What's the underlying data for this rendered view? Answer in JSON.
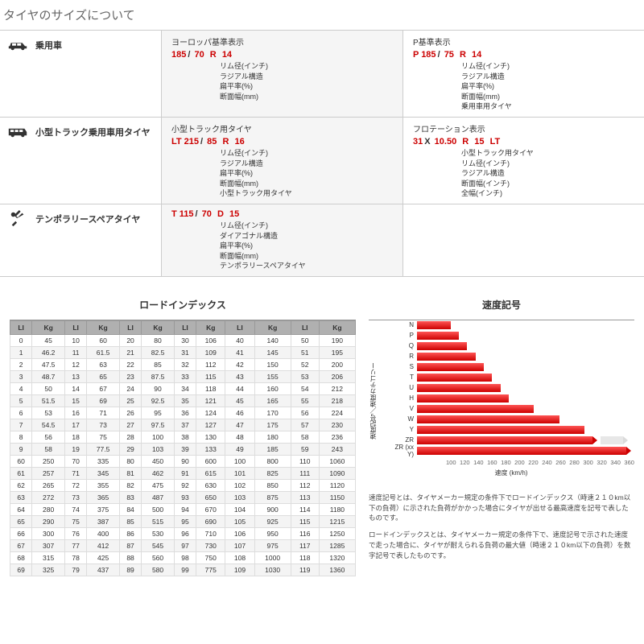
{
  "pageTitle": "タイヤのサイズについて",
  "categories": [
    {
      "id": "passenger",
      "label": "乗用車",
      "icon": "car-icon",
      "specs": [
        {
          "title": "ヨーロッパ基準表示",
          "parts": [
            "185",
            "70",
            "R",
            "14"
          ],
          "seps": [
            "/",
            "",
            ""
          ],
          "desc": [
            "リム径(インチ)",
            "ラジアル構造",
            "扁平率(%)",
            "断面幅(mm)"
          ]
        },
        {
          "title": "P基準表示",
          "parts": [
            "P 185",
            "75",
            "R",
            "14"
          ],
          "seps": [
            "/",
            "",
            ""
          ],
          "desc": [
            "リム径(インチ)",
            "ラジアル構造",
            "扁平率(%)",
            "断面幅(mm)",
            "乗用車用タイヤ"
          ]
        }
      ]
    },
    {
      "id": "light-truck",
      "label": "小型トラック乗用車用タイヤ",
      "icon": "suv-icon",
      "specs": [
        {
          "title": "小型トラック用タイヤ",
          "parts": [
            "LT 215",
            "85",
            "R",
            "16"
          ],
          "seps": [
            "/",
            "",
            ""
          ],
          "desc": [
            "リム径(インチ)",
            "ラジアル構造",
            "扁平率(%)",
            "断面幅(mm)",
            "小型トラック用タイヤ"
          ]
        },
        {
          "title": "フロテーション表示",
          "parts": [
            "31",
            "10.50",
            "R",
            "15",
            "LT"
          ],
          "seps": [
            "X",
            "",
            "",
            ""
          ],
          "desc": [
            "小型トラック用タイヤ",
            "リム径(インチ)",
            "ラジアル構造",
            "断面幅(インチ)",
            "全幅(インチ)"
          ]
        }
      ]
    },
    {
      "id": "temporary",
      "label": "テンポラリースペアタイヤ",
      "icon": "tools-icon",
      "specs": [
        {
          "title": "",
          "parts": [
            "T 115",
            "70",
            "D",
            "15"
          ],
          "seps": [
            "/",
            "",
            ""
          ],
          "desc": [
            "リム径(インチ)",
            "ダイアゴナル構造",
            "扁平率(%)",
            "断面幅(mm)",
            "テンポラリースペアタイヤ"
          ]
        }
      ]
    }
  ],
  "loadIndex": {
    "title": "ロードインデックス",
    "headers": [
      "LI",
      "Kg",
      "LI",
      "Kg",
      "LI",
      "Kg",
      "LI",
      "Kg",
      "LI",
      "Kg",
      "LI",
      "Kg"
    ],
    "rows": [
      [
        0,
        45,
        10,
        60,
        20,
        80,
        30,
        106,
        40,
        140,
        50,
        190
      ],
      [
        1,
        46.2,
        11,
        61.5,
        21,
        82.5,
        31,
        109,
        41,
        145,
        51,
        195
      ],
      [
        2,
        47.5,
        12,
        63,
        22,
        85,
        32,
        112,
        42,
        150,
        52,
        200
      ],
      [
        3,
        48.7,
        13,
        65,
        23,
        87.5,
        33,
        115,
        43,
        155,
        53,
        206
      ],
      [
        4,
        50,
        14,
        67,
        24,
        90,
        34,
        118,
        44,
        160,
        54,
        212
      ],
      [
        5,
        51.5,
        15,
        69,
        25,
        92.5,
        35,
        121,
        45,
        165,
        55,
        218
      ],
      [
        6,
        53,
        16,
        71,
        26,
        95,
        36,
        124,
        46,
        170,
        56,
        224
      ],
      [
        7,
        54.5,
        17,
        73,
        27,
        97.5,
        37,
        127,
        47,
        175,
        57,
        230
      ],
      [
        8,
        56,
        18,
        75,
        28,
        100,
        38,
        130,
        48,
        180,
        58,
        236
      ],
      [
        9,
        58,
        19,
        77.5,
        29,
        103,
        39,
        133,
        49,
        185,
        59,
        243
      ],
      [
        60,
        250,
        70,
        335,
        80,
        450,
        90,
        600,
        100,
        800,
        110,
        1060
      ],
      [
        61,
        257,
        71,
        345,
        81,
        462,
        91,
        615,
        101,
        825,
        111,
        1090
      ],
      [
        62,
        265,
        72,
        355,
        82,
        475,
        92,
        630,
        102,
        850,
        112,
        1120
      ],
      [
        63,
        272,
        73,
        365,
        83,
        487,
        93,
        650,
        103,
        875,
        113,
        1150
      ],
      [
        64,
        280,
        74,
        375,
        84,
        500,
        94,
        670,
        104,
        900,
        114,
        1180
      ],
      [
        65,
        290,
        75,
        387,
        85,
        515,
        95,
        690,
        105,
        925,
        115,
        1215
      ],
      [
        66,
        300,
        76,
        400,
        86,
        530,
        96,
        710,
        106,
        950,
        116,
        1250
      ],
      [
        67,
        307,
        77,
        412,
        87,
        545,
        97,
        730,
        107,
        975,
        117,
        1285
      ],
      [
        68,
        315,
        78,
        425,
        88,
        560,
        98,
        750,
        108,
        1000,
        118,
        1320
      ],
      [
        69,
        325,
        79,
        437,
        89,
        580,
        99,
        775,
        109,
        1030,
        119,
        1360
      ]
    ]
  },
  "speedChart": {
    "title": "速度記号",
    "yLabel": "速度記号／速度カテゴリー",
    "xLabel": "速度 (km/h)",
    "xTicks": [
      100,
      120,
      140,
      160,
      180,
      200,
      220,
      240,
      260,
      280,
      300,
      320,
      340,
      360
    ],
    "xMin": 100,
    "xMax": 360,
    "bars": [
      {
        "label": "N",
        "value": 140,
        "arrow": false
      },
      {
        "label": "P",
        "value": 150,
        "arrow": false
      },
      {
        "label": "Q",
        "value": 160,
        "arrow": false
      },
      {
        "label": "R",
        "value": 170,
        "arrow": false
      },
      {
        "label": "S",
        "value": 180,
        "arrow": false
      },
      {
        "label": "T",
        "value": 190,
        "arrow": false
      },
      {
        "label": "U",
        "value": 200,
        "arrow": false
      },
      {
        "label": "H",
        "value": 210,
        "arrow": false
      },
      {
        "label": "V",
        "value": 240,
        "arrow": false
      },
      {
        "label": "W",
        "value": 270,
        "arrow": false
      },
      {
        "label": "Y",
        "value": 300,
        "arrow": false
      },
      {
        "label": "ZR",
        "value": 310,
        "arrow": true,
        "faded": true,
        "tail": true
      },
      {
        "label": "ZR (xx Y)",
        "value": 350,
        "arrow": true
      }
    ],
    "barColor": "#cc0000"
  },
  "notes": [
    "速度記号とは、タイヤメーカー規定の条件下でロードインデックス（時速２１０km以下の負荷）に示された負荷がかかった場合にタイヤが出せる最高速度を記号で表したものです。",
    "ロードインデックスとは、タイヤメーカー規定の条件下で、速度記号で示された速度で走った場合に、タイヤが耐えられる負荷の最大値（時速２１０km以下の負荷）を数字記号で表したものです。"
  ]
}
